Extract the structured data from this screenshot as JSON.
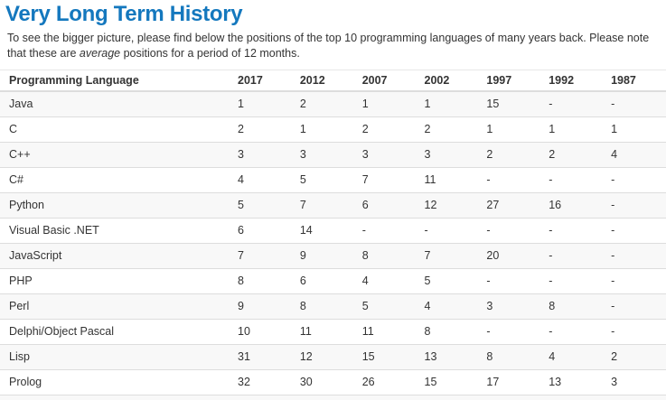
{
  "page": {
    "title": "Very Long Term History",
    "intro": {
      "part1": "To see the bigger picture, please find below the positions of the top 10 programming languages of many years back. Please note that these are ",
      "emphasis": "average",
      "part2": " positions for a period of 12 months."
    }
  },
  "colors": {
    "title_blue": "#1478be",
    "body_text": "#333333",
    "row_stripe": "#f8f8f8",
    "border": "#dddddd"
  },
  "table": {
    "columns": [
      "Programming Language",
      "2017",
      "2012",
      "2007",
      "2002",
      "1997",
      "1992",
      "1987"
    ],
    "rows": [
      {
        "language": "Java",
        "positions": [
          "1",
          "2",
          "1",
          "1",
          "15",
          "-",
          "-"
        ]
      },
      {
        "language": "C",
        "positions": [
          "2",
          "1",
          "2",
          "2",
          "1",
          "1",
          "1"
        ]
      },
      {
        "language": "C++",
        "positions": [
          "3",
          "3",
          "3",
          "3",
          "2",
          "2",
          "4"
        ]
      },
      {
        "language": "C#",
        "positions": [
          "4",
          "5",
          "7",
          "11",
          "-",
          "-",
          "-"
        ]
      },
      {
        "language": "Python",
        "positions": [
          "5",
          "7",
          "6",
          "12",
          "27",
          "16",
          "-"
        ]
      },
      {
        "language": "Visual Basic .NET",
        "positions": [
          "6",
          "14",
          "-",
          "-",
          "-",
          "-",
          "-"
        ]
      },
      {
        "language": "JavaScript",
        "positions": [
          "7",
          "9",
          "8",
          "7",
          "20",
          "-",
          "-"
        ]
      },
      {
        "language": "PHP",
        "positions": [
          "8",
          "6",
          "4",
          "5",
          "-",
          "-",
          "-"
        ]
      },
      {
        "language": "Perl",
        "positions": [
          "9",
          "8",
          "5",
          "4",
          "3",
          "8",
          "-"
        ]
      },
      {
        "language": "Delphi/Object Pascal",
        "positions": [
          "10",
          "11",
          "11",
          "8",
          "-",
          "-",
          "-"
        ]
      },
      {
        "language": "Lisp",
        "positions": [
          "31",
          "12",
          "15",
          "13",
          "8",
          "4",
          "2"
        ]
      },
      {
        "language": "Prolog",
        "positions": [
          "32",
          "30",
          "26",
          "15",
          "17",
          "13",
          "3"
        ]
      }
    ]
  }
}
